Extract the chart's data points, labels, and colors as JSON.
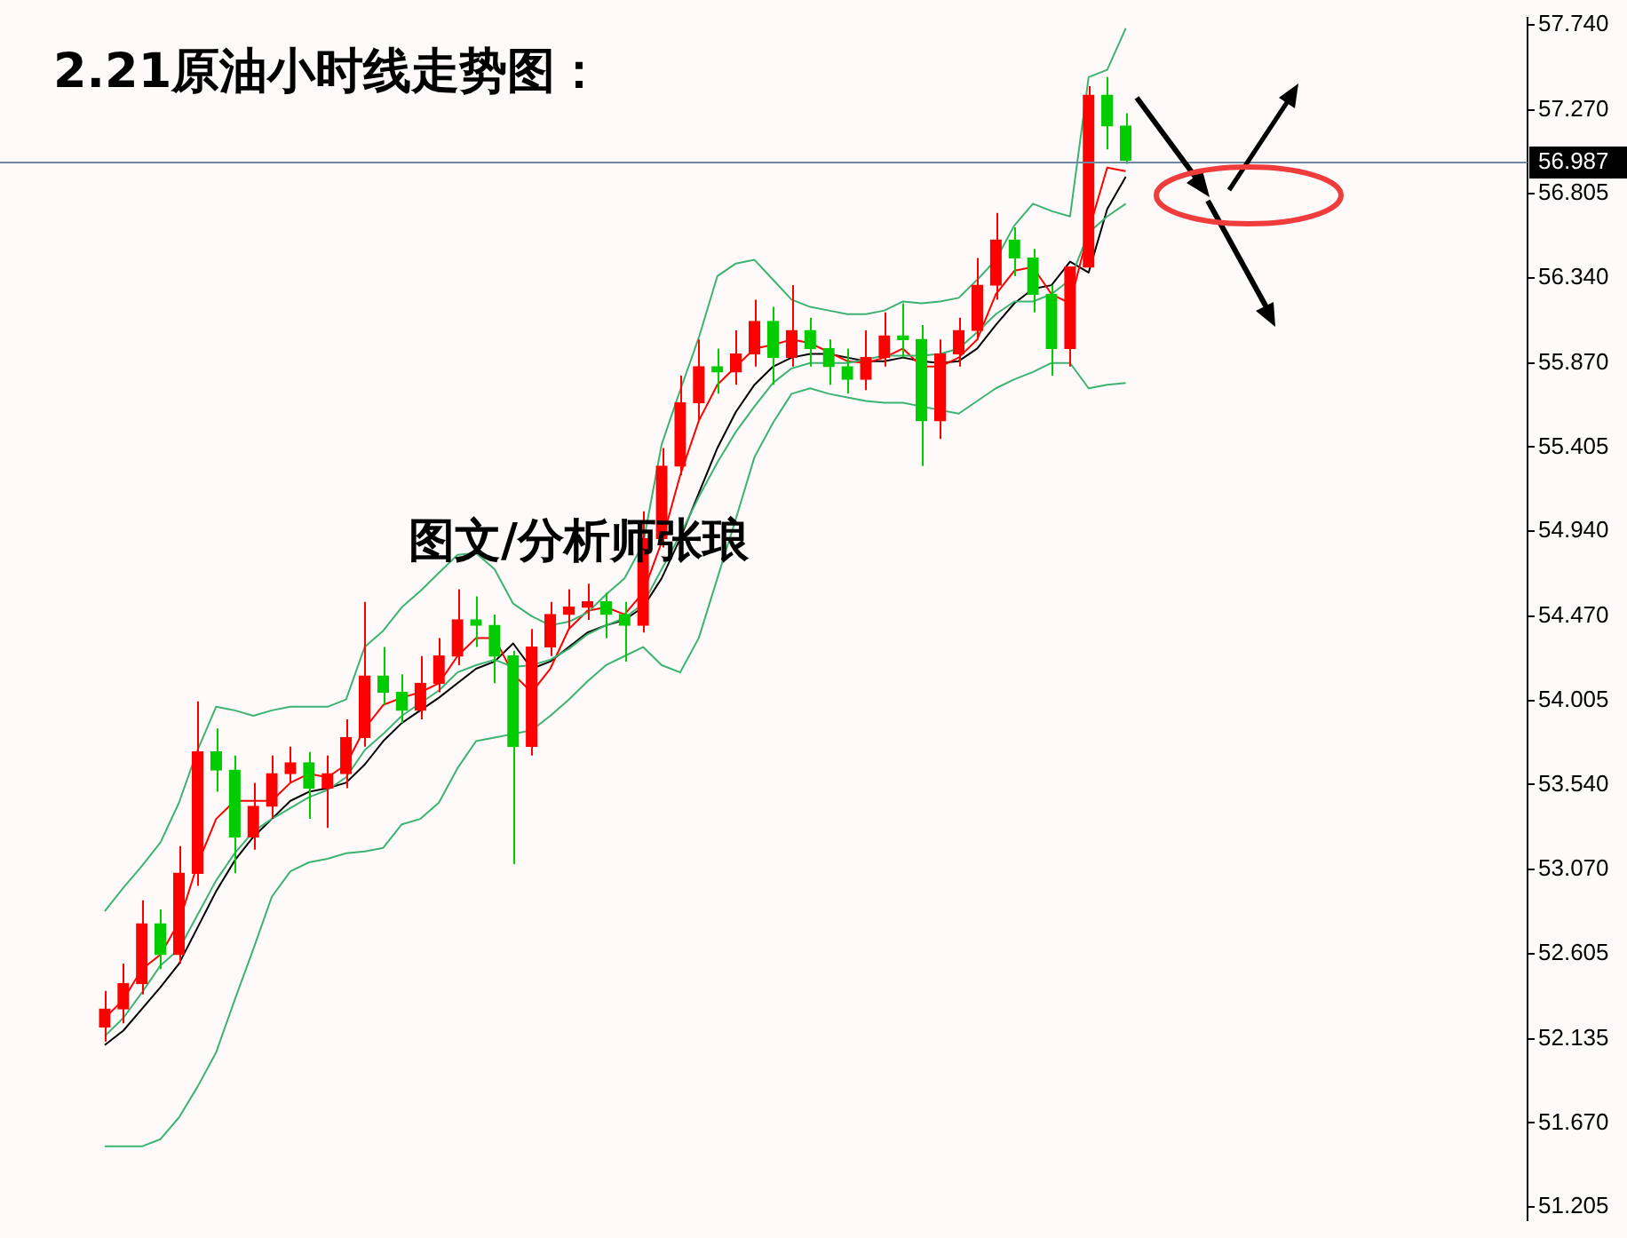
{
  "chart_data": {
    "type": "candlestick",
    "title": "2.21原油小时线走势图：",
    "annotations": [
      "图文/分析师张琅"
    ],
    "categories": [
      null,
      null,
      null,
      null,
      null,
      null,
      null,
      null,
      null,
      null,
      null,
      null,
      null,
      null,
      null,
      null,
      null,
      null,
      null,
      null,
      null,
      null,
      null,
      null,
      null,
      null,
      null,
      null,
      null,
      null,
      null,
      null,
      null,
      null,
      null,
      null,
      null,
      null,
      null,
      null,
      null,
      null,
      null,
      null,
      null,
      null,
      null,
      null,
      null,
      null,
      null,
      null,
      null,
      null,
      null,
      null
    ],
    "ohlc": [
      [
        52.2,
        52.4,
        52.12,
        52.3
      ],
      [
        52.3,
        52.55,
        52.22,
        52.44
      ],
      [
        52.44,
        52.9,
        52.38,
        52.77
      ],
      [
        52.77,
        52.85,
        52.52,
        52.6
      ],
      [
        52.6,
        53.2,
        52.55,
        53.05
      ],
      [
        53.05,
        54.0,
        52.98,
        53.72
      ],
      [
        53.72,
        53.85,
        53.5,
        53.62
      ],
      [
        53.62,
        53.7,
        53.05,
        53.25
      ],
      [
        53.25,
        53.55,
        53.18,
        53.42
      ],
      [
        53.42,
        53.7,
        53.35,
        53.6
      ],
      [
        53.6,
        53.75,
        53.55,
        53.66
      ],
      [
        53.66,
        53.72,
        53.35,
        53.52
      ],
      [
        53.52,
        53.7,
        53.3,
        53.6
      ],
      [
        53.6,
        53.9,
        53.52,
        53.8
      ],
      [
        53.8,
        54.55,
        53.75,
        54.14
      ],
      [
        54.14,
        54.3,
        53.98,
        54.05
      ],
      [
        54.05,
        54.15,
        53.88,
        53.95
      ],
      [
        53.95,
        54.25,
        53.9,
        54.1
      ],
      [
        54.1,
        54.35,
        54.05,
        54.25
      ],
      [
        54.25,
        54.62,
        54.2,
        54.45
      ],
      [
        54.45,
        54.58,
        54.3,
        54.42
      ],
      [
        54.42,
        54.48,
        54.1,
        54.25
      ],
      [
        54.25,
        54.28,
        53.1,
        53.75
      ],
      [
        53.75,
        54.4,
        53.7,
        54.3
      ],
      [
        54.3,
        54.55,
        54.25,
        54.48
      ],
      [
        54.48,
        54.62,
        54.4,
        54.52
      ],
      [
        54.52,
        54.65,
        54.45,
        54.55
      ],
      [
        54.55,
        54.6,
        54.35,
        54.48
      ],
      [
        54.48,
        54.55,
        54.22,
        54.42
      ],
      [
        54.42,
        55.05,
        54.38,
        54.9
      ],
      [
        54.9,
        55.4,
        54.85,
        55.3
      ],
      [
        55.3,
        55.8,
        55.25,
        55.65
      ],
      [
        55.65,
        56.0,
        55.55,
        55.85
      ],
      [
        55.85,
        55.95,
        55.7,
        55.82
      ],
      [
        55.82,
        56.05,
        55.75,
        55.92
      ],
      [
        55.92,
        56.22,
        55.85,
        56.1
      ],
      [
        56.1,
        56.18,
        55.75,
        55.9
      ],
      [
        55.9,
        56.3,
        55.85,
        56.05
      ],
      [
        56.05,
        56.12,
        55.85,
        55.95
      ],
      [
        55.95,
        56.0,
        55.75,
        55.85
      ],
      [
        55.85,
        55.95,
        55.7,
        55.78
      ],
      [
        55.78,
        56.05,
        55.72,
        55.9
      ],
      [
        55.9,
        56.15,
        55.85,
        56.02
      ],
      [
        56.02,
        56.2,
        55.9,
        56.0
      ],
      [
        56.0,
        56.08,
        55.3,
        55.55
      ],
      [
        55.55,
        56.0,
        55.45,
        55.92
      ],
      [
        55.92,
        56.12,
        55.85,
        56.05
      ],
      [
        56.05,
        56.45,
        56.0,
        56.3
      ],
      [
        56.3,
        56.7,
        56.22,
        56.55
      ],
      [
        56.55,
        56.62,
        56.35,
        56.45
      ],
      [
        56.45,
        56.5,
        56.15,
        56.25
      ],
      [
        56.25,
        56.3,
        55.8,
        55.95
      ],
      [
        55.95,
        56.4,
        55.85,
        56.4
      ],
      [
        56.4,
        57.4,
        56.4,
        57.35
      ],
      [
        57.35,
        57.45,
        57.05,
        57.18
      ],
      [
        57.18,
        57.25,
        56.97,
        56.99
      ]
    ],
    "colors": [
      "#ff0000",
      "#ff0000",
      "#ff0000",
      "#00cc00",
      "#ff0000",
      "#ff0000",
      "#00cc00",
      "#00cc00",
      "#ff0000",
      "#ff0000",
      "#ff0000",
      "#00cc00",
      "#ff0000",
      "#ff0000",
      "#ff0000",
      "#00cc00",
      "#00cc00",
      "#ff0000",
      "#ff0000",
      "#ff0000",
      "#00cc00",
      "#00cc00",
      "#00cc00",
      "#ff0000",
      "#ff0000",
      "#ff0000",
      "#ff0000",
      "#00cc00",
      "#00cc00",
      "#ff0000",
      "#ff0000",
      "#ff0000",
      "#ff0000",
      "#00cc00",
      "#ff0000",
      "#ff0000",
      "#00cc00",
      "#ff0000",
      "#00cc00",
      "#00cc00",
      "#00cc00",
      "#ff0000",
      "#ff0000",
      "#00cc00",
      "#00cc00",
      "#ff0000",
      "#ff0000",
      "#ff0000",
      "#ff0000",
      "#00cc00",
      "#00cc00",
      "#00cc00",
      "#ff0000",
      "#ff0000",
      "#00cc00",
      "#00cc00"
    ],
    "series": [
      {
        "type": "line",
        "color": "#3cb371",
        "values": [
          52.84,
          52.97,
          53.09,
          53.22,
          53.44,
          53.73,
          53.97,
          53.95,
          53.92,
          53.95,
          53.97,
          53.97,
          53.97,
          54.01,
          54.3,
          54.39,
          54.52,
          54.61,
          54.71,
          54.81,
          54.82,
          54.73,
          54.54,
          54.47,
          54.42,
          54.44,
          54.49,
          54.59,
          54.68,
          54.87,
          55.42,
          55.72,
          56.01,
          56.35,
          56.42,
          56.44,
          56.33,
          56.22,
          56.18,
          56.16,
          56.14,
          56.14,
          56.16,
          56.21,
          56.2,
          56.21,
          56.23,
          56.33,
          56.44,
          56.63,
          56.75,
          56.71,
          56.68,
          57.45,
          57.49,
          57.72
        ]
      },
      {
        "type": "line",
        "color": "#3cb371",
        "values": [
          52.15,
          52.25,
          52.39,
          52.54,
          52.63,
          52.82,
          53.01,
          53.16,
          53.28,
          53.35,
          53.41,
          53.47,
          53.51,
          53.58,
          53.73,
          53.82,
          53.92,
          53.99,
          54.06,
          54.16,
          54.2,
          54.23,
          54.19,
          54.2,
          54.23,
          54.29,
          54.37,
          54.42,
          54.46,
          54.54,
          54.73,
          54.92,
          55.13,
          55.32,
          55.49,
          55.63,
          55.76,
          55.84,
          55.87,
          55.87,
          55.87,
          55.89,
          55.91,
          55.91,
          55.91,
          55.92,
          55.95,
          56.04,
          56.14,
          56.21,
          56.21,
          56.25,
          56.33,
          56.59,
          56.68,
          56.75
        ]
      },
      {
        "type": "line",
        "color": "#3cb371",
        "values": [
          51.54,
          51.54,
          51.54,
          51.58,
          51.7,
          51.87,
          52.06,
          52.35,
          52.63,
          52.92,
          53.06,
          53.11,
          53.13,
          53.16,
          53.17,
          53.19,
          53.32,
          53.35,
          53.44,
          53.63,
          53.78,
          53.8,
          53.82,
          53.84,
          53.92,
          54.01,
          54.11,
          54.2,
          54.25,
          54.3,
          54.2,
          54.16,
          54.35,
          54.68,
          55.01,
          55.35,
          55.54,
          55.7,
          55.73,
          55.7,
          55.68,
          55.66,
          55.65,
          55.65,
          55.63,
          55.61,
          55.59,
          55.66,
          55.73,
          55.78,
          55.82,
          55.87,
          55.87,
          55.73,
          55.75,
          55.76
        ]
      },
      {
        "type": "line",
        "color": "#ff0000",
        "values": [
          52.25,
          52.35,
          52.52,
          52.6,
          52.78,
          53.1,
          53.35,
          53.45,
          53.45,
          53.45,
          53.55,
          53.6,
          53.58,
          53.65,
          53.85,
          53.98,
          54.02,
          54.05,
          54.1,
          54.25,
          54.35,
          54.35,
          54.15,
          54.05,
          54.18,
          54.4,
          54.5,
          54.52,
          54.48,
          54.6,
          54.88,
          55.25,
          55.55,
          55.75,
          55.85,
          55.95,
          55.97,
          56.0,
          55.98,
          55.93,
          55.88,
          55.87,
          55.9,
          55.95,
          55.85,
          55.85,
          55.9,
          56.0,
          56.25,
          56.38,
          56.4,
          56.25,
          56.2,
          56.6,
          56.95,
          56.93
        ]
      },
      {
        "type": "line",
        "color": "#000000",
        "values": [
          52.1,
          52.18,
          52.3,
          52.42,
          52.55,
          52.75,
          52.95,
          53.12,
          53.25,
          53.35,
          53.45,
          53.5,
          53.52,
          53.55,
          53.65,
          53.78,
          53.88,
          53.95,
          54.02,
          54.1,
          54.18,
          54.22,
          54.32,
          54.18,
          54.22,
          54.3,
          54.38,
          54.42,
          54.45,
          54.52,
          54.68,
          54.9,
          55.15,
          55.4,
          55.6,
          55.75,
          55.85,
          55.9,
          55.92,
          55.92,
          55.9,
          55.88,
          55.88,
          55.9,
          55.88,
          55.87,
          55.88,
          55.95,
          56.08,
          56.2,
          56.28,
          56.3,
          56.43,
          56.37,
          56.72,
          56.9
        ]
      }
    ],
    "ylim": [
      51.13,
      57.78
    ],
    "yticks": [
      {
        "value": 57.74,
        "label": "57.740"
      },
      {
        "value": 57.27,
        "label": "57.270"
      },
      {
        "value": 56.805,
        "label": "56.805"
      },
      {
        "value": 56.34,
        "label": "56.340"
      },
      {
        "value": 55.87,
        "label": "55.870"
      },
      {
        "value": 55.405,
        "label": "55.405"
      },
      {
        "value": 54.94,
        "label": "54.940"
      },
      {
        "value": 54.47,
        "label": "54.470"
      },
      {
        "value": 54.005,
        "label": "54.005"
      },
      {
        "value": 53.54,
        "label": "53.540"
      },
      {
        "value": 53.07,
        "label": "53.070"
      },
      {
        "value": 52.605,
        "label": "52.605"
      },
      {
        "value": 52.135,
        "label": "52.135"
      },
      {
        "value": 51.67,
        "label": "51.670"
      },
      {
        "value": 51.205,
        "label": "51.205"
      }
    ],
    "ref_lines": [
      {
        "axis": "y",
        "value": 56.987,
        "label": "56.987",
        "color": "#6d87a0"
      }
    ]
  }
}
